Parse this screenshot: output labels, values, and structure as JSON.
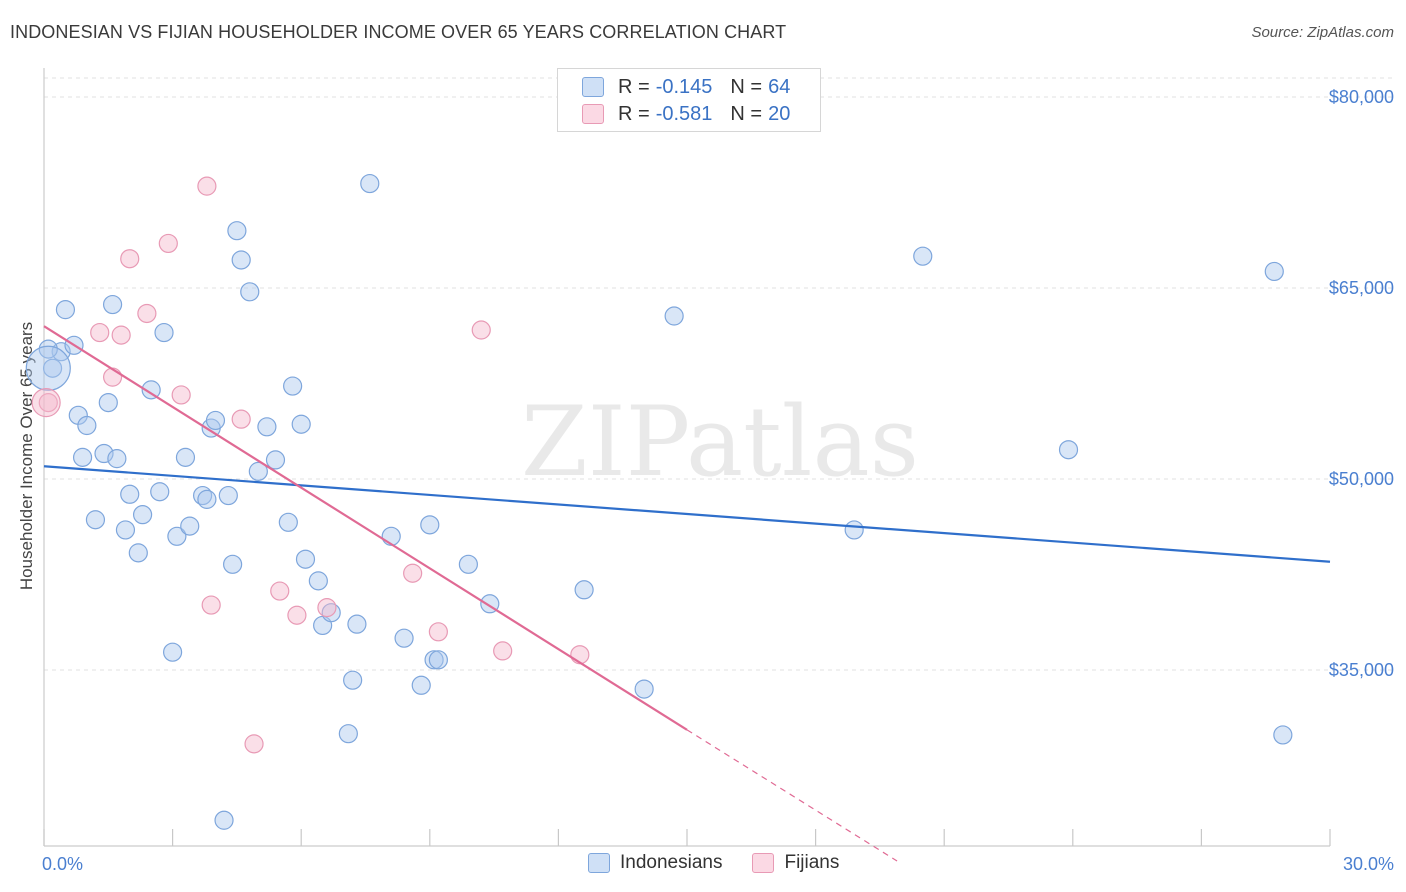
{
  "chart_data": {
    "type": "scatter",
    "title": "INDONESIAN VS FIJIAN HOUSEHOLDER INCOME OVER 65 YEARS CORRELATION CHART",
    "source": "Source: ZipAtlas.com",
    "xlabel": "",
    "ylabel": "Householder Income Over 65 years",
    "xlim": [
      0,
      30
    ],
    "ylim": [
      20000,
      83000
    ],
    "x_tick_labels": [
      "0.0%",
      "30.0%"
    ],
    "y_ticks": [
      35000,
      50000,
      65000,
      80000
    ],
    "y_tick_labels": [
      "$35,000",
      "$50,000",
      "$65,000",
      "$80,000"
    ],
    "watermark": "ZIPatlas",
    "legend": [
      {
        "r_label": "R =",
        "r_value": "-0.145",
        "n_label": "N =",
        "n_value": "64",
        "color": "#aac7ee"
      },
      {
        "r_label": "R =",
        "r_value": "-0.581",
        "n_label": "N =",
        "n_value": "20",
        "color": "#f5b9cd"
      }
    ],
    "series": [
      {
        "name": "Indonesians",
        "color": "#7ea6dc",
        "line_color": "#2f6fcb",
        "trend": {
          "x0": 0,
          "y0": 51000,
          "x1": 30,
          "y1": 43500
        },
        "points": [
          [
            0.2,
            58700
          ],
          [
            0.4,
            60000
          ],
          [
            0.5,
            63300
          ],
          [
            0.7,
            60500
          ],
          [
            0.8,
            55000
          ],
          [
            0.9,
            51700
          ],
          [
            1.0,
            54200
          ],
          [
            1.2,
            46800
          ],
          [
            1.5,
            56000
          ],
          [
            1.4,
            52000
          ],
          [
            1.7,
            51600
          ],
          [
            1.6,
            63700
          ],
          [
            2.0,
            48800
          ],
          [
            1.9,
            46000
          ],
          [
            2.2,
            44200
          ],
          [
            2.3,
            47200
          ],
          [
            2.5,
            57000
          ],
          [
            2.7,
            49000
          ],
          [
            2.8,
            61500
          ],
          [
            3.1,
            45500
          ],
          [
            3.3,
            51700
          ],
          [
            3.4,
            46300
          ],
          [
            3.7,
            48700
          ],
          [
            3.8,
            48400
          ],
          [
            3.9,
            54000
          ],
          [
            4.0,
            54600
          ],
          [
            4.3,
            48700
          ],
          [
            4.4,
            43300
          ],
          [
            4.5,
            69500
          ],
          [
            4.6,
            67200
          ],
          [
            4.8,
            64700
          ],
          [
            5.2,
            54100
          ],
          [
            5.0,
            50600
          ],
          [
            5.4,
            51500
          ],
          [
            5.7,
            46600
          ],
          [
            5.8,
            57300
          ],
          [
            6.0,
            54300
          ],
          [
            6.1,
            43700
          ],
          [
            6.4,
            42000
          ],
          [
            6.5,
            38500
          ],
          [
            6.7,
            39500
          ],
          [
            7.1,
            30000
          ],
          [
            7.2,
            34200
          ],
          [
            7.3,
            38600
          ],
          [
            7.6,
            73200
          ],
          [
            8.1,
            45500
          ],
          [
            8.4,
            37500
          ],
          [
            8.8,
            33800
          ],
          [
            9.0,
            46400
          ],
          [
            9.1,
            35800
          ],
          [
            9.2,
            35800
          ],
          [
            9.9,
            43300
          ],
          [
            10.4,
            40200
          ],
          [
            12.6,
            41300
          ],
          [
            14.0,
            33500
          ],
          [
            14.7,
            62800
          ],
          [
            18.9,
            46000
          ],
          [
            20.5,
            67500
          ],
          [
            23.9,
            52300
          ],
          [
            28.7,
            66300
          ],
          [
            28.9,
            29900
          ],
          [
            3.0,
            36400
          ],
          [
            4.2,
            23200
          ],
          [
            0.1,
            60200
          ]
        ]
      },
      {
        "name": "Fijians",
        "color": "#e89ab5",
        "line_color": "#e06a94",
        "trend": {
          "x0": 0,
          "y0": 62000,
          "x1": 15.0,
          "y1": 30300
        },
        "trend_dash_to": {
          "x": 19.9,
          "y": 20000
        },
        "points": [
          [
            0.1,
            56000
          ],
          [
            1.3,
            61500
          ],
          [
            1.6,
            58000
          ],
          [
            1.8,
            61300
          ],
          [
            2.0,
            67300
          ],
          [
            2.4,
            63000
          ],
          [
            2.9,
            68500
          ],
          [
            3.2,
            56600
          ],
          [
            3.8,
            73000
          ],
          [
            3.9,
            40100
          ],
          [
            4.6,
            54700
          ],
          [
            5.5,
            41200
          ],
          [
            5.9,
            39300
          ],
          [
            6.6,
            39900
          ],
          [
            8.6,
            42600
          ],
          [
            9.2,
            38000
          ],
          [
            10.2,
            61700
          ],
          [
            10.7,
            36500
          ],
          [
            12.5,
            36200
          ],
          [
            4.9,
            29200
          ]
        ]
      }
    ]
  }
}
